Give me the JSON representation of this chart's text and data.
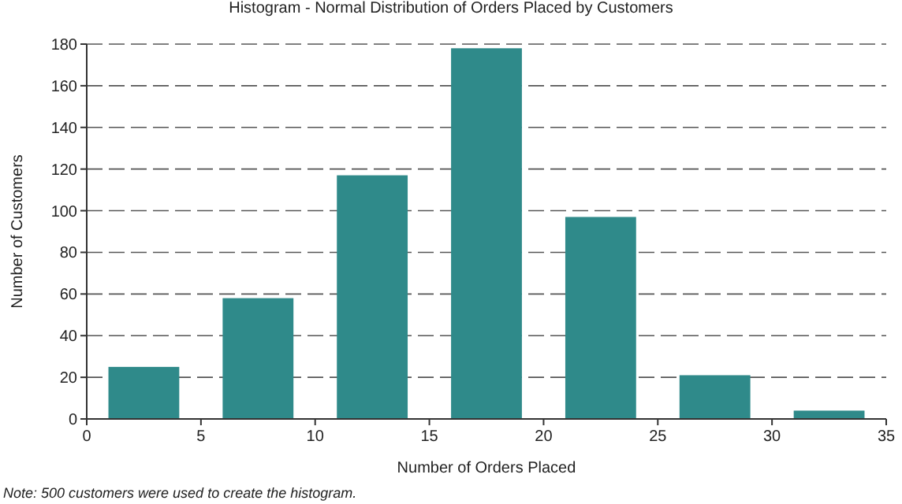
{
  "chart_data": {
    "type": "histogram",
    "title": "Histogram - Normal Distribution of Orders Placed by Customers",
    "xlabel": "Number of Orders Placed",
    "ylabel": "Number of Customers",
    "bins": [
      0,
      5,
      10,
      15,
      20,
      25,
      30,
      35
    ],
    "values": [
      25,
      58,
      117,
      178,
      97,
      21,
      4
    ],
    "color": "#2f8a8a",
    "xlim": [
      0,
      35
    ],
    "xticks": [
      0,
      5,
      10,
      15,
      20,
      25,
      30,
      35
    ],
    "ylim": [
      0,
      180
    ],
    "yticks": [
      0,
      20,
      40,
      60,
      80,
      100,
      120,
      140,
      160,
      180
    ],
    "grid": "y",
    "annotations": [
      "Note: 500 customers were used to create the histogram."
    ]
  }
}
